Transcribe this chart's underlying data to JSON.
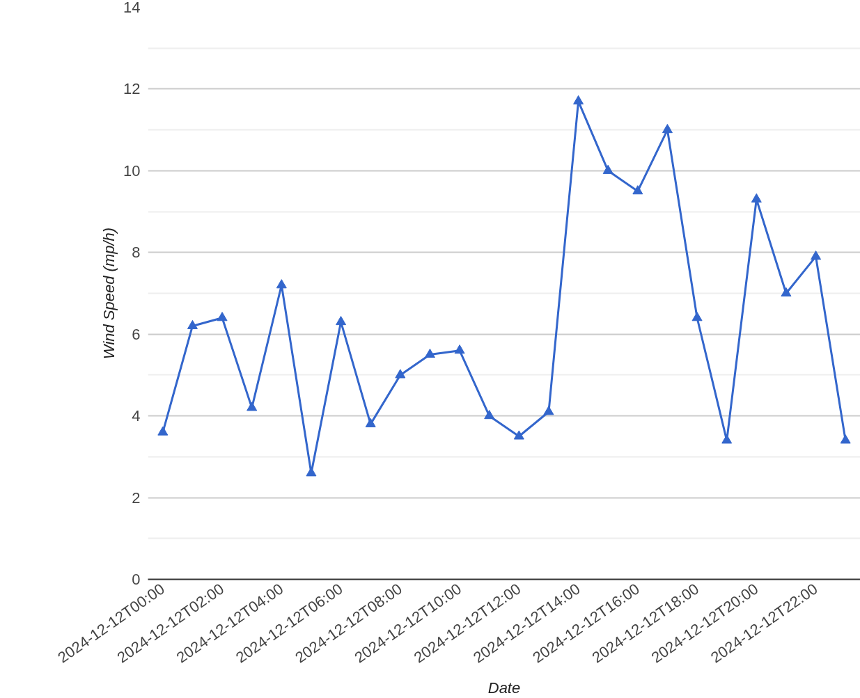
{
  "chart_data": {
    "type": "line",
    "xlabel": "Date",
    "ylabel": "Wind Speed (mp/h)",
    "x": [
      "2024-12-12T00:00",
      "2024-12-12T01:00",
      "2024-12-12T02:00",
      "2024-12-12T03:00",
      "2024-12-12T04:00",
      "2024-12-12T05:00",
      "2024-12-12T06:00",
      "2024-12-12T07:00",
      "2024-12-12T08:00",
      "2024-12-12T09:00",
      "2024-12-12T10:00",
      "2024-12-12T11:00",
      "2024-12-12T12:00",
      "2024-12-12T13:00",
      "2024-12-12T14:00",
      "2024-12-12T15:00",
      "2024-12-12T16:00",
      "2024-12-12T17:00",
      "2024-12-12T18:00",
      "2024-12-12T19:00",
      "2024-12-12T20:00",
      "2024-12-12T21:00",
      "2024-12-12T22:00",
      "2024-12-12T23:00"
    ],
    "series": [
      {
        "color": "#3366cc",
        "values": [
          3.6,
          6.2,
          6.4,
          4.2,
          7.2,
          2.6,
          6.3,
          3.8,
          5.0,
          5.5,
          5.6,
          4.0,
          3.5,
          4.1,
          11.7,
          10.0,
          9.5,
          11.0,
          6.4,
          3.4,
          9.3,
          7.0,
          7.9,
          3.4
        ]
      }
    ],
    "xlim": [
      "2024-12-11T23:30",
      "2024-12-12T23:30"
    ],
    "xticks": [
      "2024-12-12T00:00",
      "2024-12-12T02:00",
      "2024-12-12T04:00",
      "2024-12-12T06:00",
      "2024-12-12T08:00",
      "2024-12-12T10:00",
      "2024-12-12T12:00",
      "2024-12-12T14:00",
      "2024-12-12T16:00",
      "2024-12-12T18:00",
      "2024-12-12T20:00",
      "2024-12-12T22:00"
    ],
    "ylim": [
      0,
      14
    ],
    "yticks": [
      0,
      2,
      4,
      6,
      8,
      10,
      12,
      14
    ],
    "grid": "y",
    "marker": "triangle",
    "line_style": "solid"
  }
}
